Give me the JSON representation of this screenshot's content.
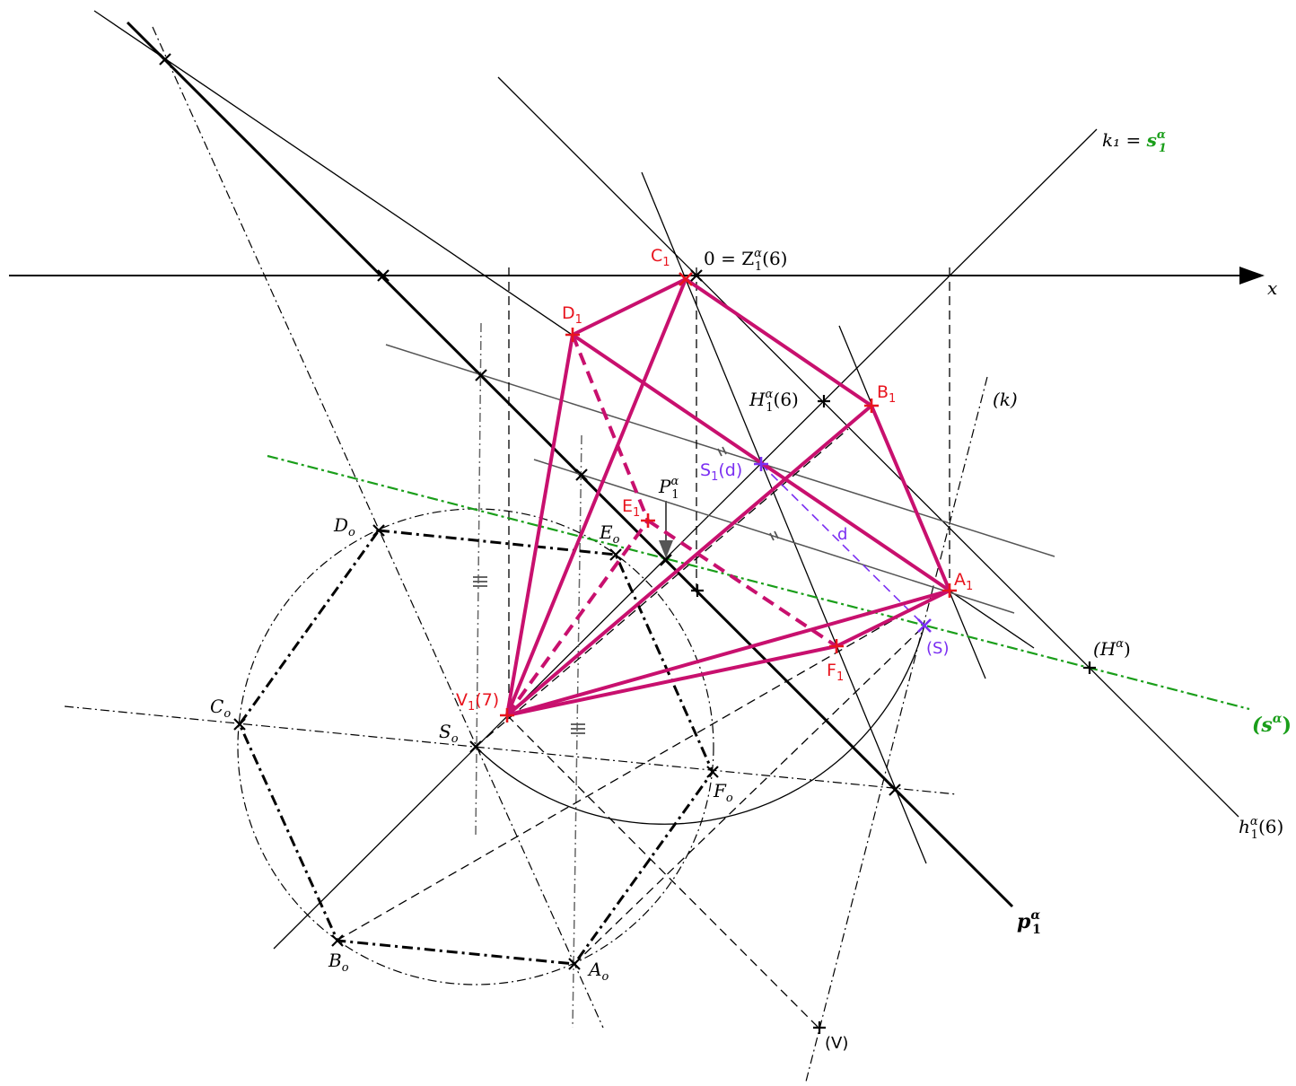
{
  "labels": {
    "x_axis": "x",
    "k1": "k₁ = ",
    "s1_alpha": "s",
    "s1_alpha_sub": "1",
    "s1_alpha_sup": "α",
    "origin": "0 = Z",
    "origin_sup": "α",
    "origin_sub": "1",
    "origin_tail": "(6)",
    "H1": "H",
    "H1_sup": "α",
    "H1_sub": "1",
    "H1_tail": "(6)",
    "k": "(k)",
    "P1": "P",
    "P1_sup": "α",
    "P1_sub": "1",
    "H_alpha": "(H",
    "H_alpha_sup": "α",
    "H_alpha_tail": ")",
    "s_alpha": "(s",
    "s_alpha_sup": "α",
    "s_alpha_tail": ")",
    "h1": "h",
    "h1_sup": "α",
    "h1_sub": "1",
    "h1_tail": "(6)",
    "p1": "p",
    "p1_sup": "α",
    "p1_sub": "1",
    "Do": "D",
    "Eo": "E",
    "Co": "C",
    "So": "S",
    "Fo": "F",
    "Bo": "B",
    "Ao": "A",
    "o_sub": "o",
    "V": "(V)",
    "S": "(S)",
    "d": "d"
  },
  "red_labels": {
    "C1": "C",
    "D1": "D",
    "B1": "B",
    "A1": "A",
    "E1": "E",
    "F1": "F",
    "V1": "V",
    "sub": "1",
    "V1_tail": "(7)"
  },
  "violet_labels": {
    "S1": "S",
    "sub": "1",
    "S1_tail": "(d)"
  },
  "colors": {
    "magenta": "#c8106e",
    "red": "#e8141e",
    "green": "#1a9e1a",
    "violet": "#7b2ff2"
  }
}
